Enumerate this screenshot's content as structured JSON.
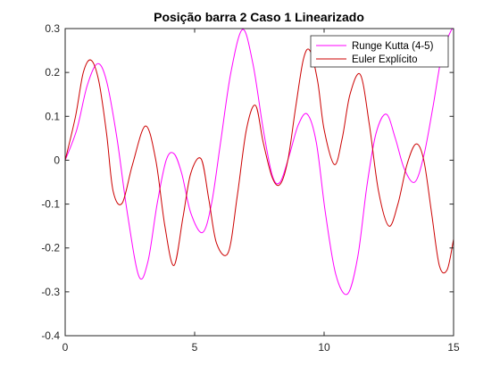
{
  "chart_data": {
    "type": "line",
    "title": "Posição barra 2 Caso 1 Linearizado",
    "xlabel": "",
    "ylabel": "",
    "xlim": [
      0,
      15
    ],
    "ylim": [
      -0.4,
      0.3
    ],
    "grid": false,
    "legend_position": "top-right",
    "x_ticks": [
      0,
      5,
      10,
      15
    ],
    "x_tick_labels": [
      "0",
      "5",
      "10",
      "15"
    ],
    "y_ticks": [
      -0.4,
      -0.3,
      -0.2,
      -0.1,
      0,
      0.1,
      0.2,
      0.3
    ],
    "y_tick_labels": [
      "-0.4",
      "-0.3",
      "-0.2",
      "-0.1",
      "0",
      "0.1",
      "0.2",
      "0.3"
    ],
    "series": [
      {
        "name": "Runge Kutta (4-5)",
        "color": "#ff00ff",
        "x": [
          0,
          0.45,
          0.85,
          1.25,
          1.6,
          2.0,
          2.4,
          2.85,
          3.2,
          3.55,
          3.9,
          4.2,
          4.5,
          4.85,
          5.3,
          5.65,
          6.0,
          6.4,
          6.85,
          7.25,
          7.65,
          8.0,
          8.3,
          8.65,
          9.0,
          9.35,
          9.7,
          10.05,
          10.45,
          10.9,
          11.3,
          11.65,
          12.0,
          12.4,
          12.75,
          13.1,
          13.5,
          13.85,
          14.2,
          14.55,
          14.9,
          15.0
        ],
        "y": [
          0,
          0.07,
          0.17,
          0.22,
          0.18,
          0.05,
          -0.12,
          -0.265,
          -0.23,
          -0.1,
          0.0,
          0.015,
          -0.03,
          -0.12,
          -0.165,
          -0.1,
          0.04,
          0.2,
          0.298,
          0.22,
          0.07,
          -0.035,
          -0.05,
          0.01,
          0.08,
          0.105,
          0.04,
          -0.12,
          -0.26,
          -0.305,
          -0.22,
          -0.06,
          0.06,
          0.105,
          0.05,
          -0.02,
          -0.05,
          0.01,
          0.12,
          0.24,
          0.295,
          0.298
        ]
      },
      {
        "name": "Euler Explícito",
        "color": "#cc0000",
        "x": [
          0,
          0.4,
          0.7,
          1.0,
          1.3,
          1.6,
          1.85,
          2.2,
          2.6,
          3.1,
          3.5,
          3.85,
          4.2,
          4.55,
          4.85,
          5.25,
          5.55,
          5.85,
          6.3,
          6.65,
          7.0,
          7.35,
          7.65,
          8.0,
          8.3,
          8.6,
          8.9,
          9.2,
          9.45,
          9.75,
          10.0,
          10.4,
          10.7,
          11.0,
          11.4,
          11.75,
          12.1,
          12.5,
          12.85,
          13.2,
          13.55,
          13.85,
          14.15,
          14.45,
          14.75,
          15.0
        ],
        "y": [
          0,
          0.1,
          0.2,
          0.228,
          0.18,
          0.06,
          -0.07,
          -0.098,
          -0.01,
          0.078,
          0.0,
          -0.15,
          -0.24,
          -0.13,
          -0.03,
          0.003,
          -0.09,
          -0.19,
          -0.21,
          -0.08,
          0.07,
          0.125,
          0.04,
          -0.04,
          -0.055,
          0.0,
          0.12,
          0.23,
          0.25,
          0.18,
          0.07,
          -0.01,
          0.05,
          0.15,
          0.195,
          0.08,
          -0.07,
          -0.15,
          -0.1,
          -0.01,
          0.037,
          0.0,
          -0.12,
          -0.24,
          -0.25,
          -0.18
        ]
      }
    ]
  }
}
